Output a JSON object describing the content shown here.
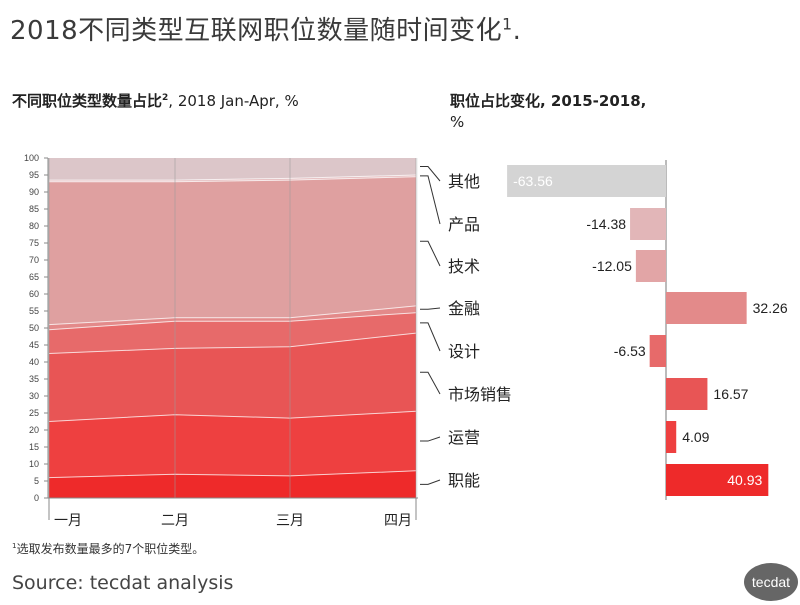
{
  "title": "2018不同类型互联网职位数量随时间变化",
  "title_sup": "1",
  "title_tail": ".",
  "left_subtitle": "不同职位类型数量占比",
  "left_subtitle_sup": "2",
  "left_subtitle_tail": ", 2018 Jan-Apr, %",
  "right_subtitle_line1": "职位占比变化, 2015-2018,",
  "right_subtitle_line2": "%",
  "footnote_sup": "1",
  "footnote": "选取发布数量最多的7个职位类型。",
  "source": "Source: tecdat analysis",
  "logo": "tecdat",
  "chart_data": [
    {
      "type": "area",
      "stacked": true,
      "categories": [
        "一月",
        "二月",
        "三月",
        "四月"
      ],
      "ylim": [
        0,
        100
      ],
      "yticks": [
        0,
        5,
        10,
        15,
        20,
        25,
        30,
        35,
        40,
        45,
        50,
        55,
        60,
        65,
        70,
        75,
        80,
        85,
        90,
        95,
        100
      ],
      "grid": false,
      "series": [
        {
          "name": "职能",
          "color": "#ee2a2a",
          "values": [
            6,
            7,
            6.5,
            8
          ]
        },
        {
          "name": "运营",
          "color": "#ee4040",
          "values": [
            16.5,
            17.5,
            17,
            17.5
          ]
        },
        {
          "name": "市场销售",
          "color": "#e85555",
          "values": [
            20,
            19.5,
            21,
            23
          ]
        },
        {
          "name": "设计",
          "color": "#e76a6a",
          "values": [
            7,
            8,
            7.5,
            6
          ]
        },
        {
          "name": "金融",
          "color": "#e38a8a",
          "values": [
            1.5,
            1,
            1,
            2
          ]
        },
        {
          "name": "技术",
          "color": "#dfa0a0",
          "values": [
            42,
            40,
            40.5,
            38
          ]
        },
        {
          "name": "产品",
          "color": "#e2b6b8",
          "values": [
            0.5,
            0.5,
            0.5,
            0.5
          ]
        },
        {
          "name": "其他",
          "color": "#dcc6c9",
          "values": [
            6.5,
            6.5,
            6,
            5
          ]
        }
      ]
    },
    {
      "type": "bar",
      "orientation": "horizontal",
      "categories": [
        "其他",
        "产品",
        "技术",
        "金融",
        "设计",
        "市场销售",
        "运营",
        "职能"
      ],
      "values": [
        -63.56,
        -14.38,
        -12.05,
        32.26,
        -6.53,
        16.57,
        4.09,
        40.93
      ],
      "labels": [
        "-63.56",
        "-14.38",
        "-12.05",
        "32.26",
        "-6.53",
        "16.57",
        "4.09",
        "40.93"
      ],
      "colors": [
        "#d4d4d4",
        "#e2b6b8",
        "#e2a5a6",
        "#e38a8a",
        "#e76a6a",
        "#e85555",
        "#ee4040",
        "#ee2a2a"
      ]
    }
  ]
}
